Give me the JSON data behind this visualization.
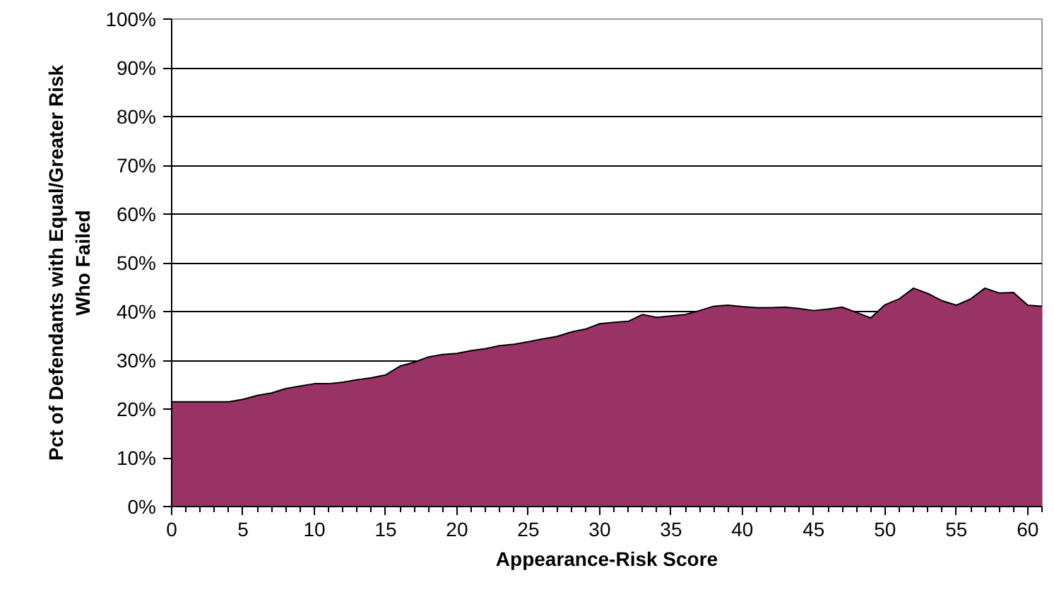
{
  "chart_data": {
    "type": "area",
    "xlabel": "Appearance-Risk Score",
    "ylabel": "Pct of Defendants with Equal/Greater Risk\nWho Failed",
    "x": [
      0,
      1,
      2,
      3,
      4,
      5,
      6,
      7,
      8,
      9,
      10,
      11,
      12,
      13,
      14,
      15,
      16,
      17,
      18,
      19,
      20,
      21,
      22,
      23,
      24,
      25,
      26,
      27,
      28,
      29,
      30,
      31,
      32,
      33,
      34,
      35,
      36,
      37,
      38,
      39,
      40,
      41,
      42,
      43,
      44,
      45,
      46,
      47,
      48,
      49,
      50,
      51,
      52,
      53,
      54,
      55,
      56,
      57,
      58,
      59,
      60,
      61
    ],
    "series": [
      {
        "color": "#993366",
        "values": [
          21.5,
          21.5,
          21.5,
          21.5,
          21.5,
          22,
          22.8,
          23.3,
          24.2,
          24.7,
          25.2,
          25.2,
          25.5,
          26,
          26.4,
          27,
          28.8,
          29.6,
          30.7,
          31.2,
          31.4,
          32,
          32.4,
          33,
          33.3,
          33.8,
          34.4,
          34.9,
          35.8,
          36.4,
          37.5,
          37.8,
          38,
          39.4,
          38.8,
          39.1,
          39.4,
          40.2,
          41.1,
          41.3,
          41,
          40.8,
          40.8,
          40.9,
          40.6,
          40.2,
          40.5,
          40.9,
          39.8,
          38.7,
          41.4,
          42.6,
          44.8,
          43.7,
          42.2,
          41.3,
          42.6,
          44.8,
          43.8,
          43.9,
          41.3,
          41.1
        ]
      }
    ],
    "xlim": [
      0,
      61
    ],
    "xticks": [
      0,
      5,
      10,
      15,
      20,
      25,
      30,
      35,
      40,
      45,
      50,
      55,
      60
    ],
    "ylim": [
      0,
      100
    ],
    "yticks": [
      {
        "value": 0,
        "label": "0%"
      },
      {
        "value": 10,
        "label": "10%"
      },
      {
        "value": 20,
        "label": "20%"
      },
      {
        "value": 30,
        "label": "30%"
      },
      {
        "value": 40,
        "label": "40%"
      },
      {
        "value": 50,
        "label": "50%"
      },
      {
        "value": 60,
        "label": "60%"
      },
      {
        "value": 70,
        "label": "70%"
      },
      {
        "value": 80,
        "label": "80%"
      },
      {
        "value": 90,
        "label": "90%"
      },
      {
        "value": 100,
        "label": "100%"
      }
    ],
    "grid": "y"
  }
}
